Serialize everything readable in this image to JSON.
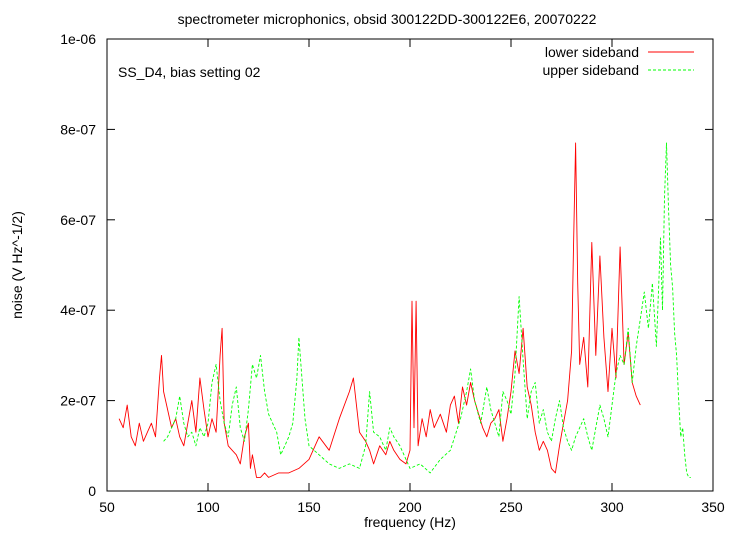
{
  "chart_data": {
    "type": "line",
    "title": "spectrometer microphonics, obsid 300122DD-300122E6, 20070222",
    "annotation": "SS_D4, bias setting 02",
    "xlabel": "frequency (Hz)",
    "ylabel": "noise (V Hz^-1/2)",
    "xlim": [
      50,
      350
    ],
    "ylim": [
      0,
      1e-06
    ],
    "x_ticks": [
      50,
      100,
      150,
      200,
      250,
      300,
      350
    ],
    "x_tick_labels": [
      "50",
      "100",
      "150",
      "200",
      "250",
      "300",
      "350"
    ],
    "y_ticks": [
      0,
      2e-07,
      4e-07,
      6e-07,
      8e-07,
      1e-06
    ],
    "y_tick_labels": [
      "0",
      "2e-07",
      "4e-07",
      "6e-07",
      "8e-07",
      "1e-06"
    ],
    "grid": false,
    "legend_position": "top-right",
    "series": [
      {
        "name": "lower sideband",
        "color": "#ff0000",
        "dash": "solid",
        "x": [
          56,
          58,
          60,
          62,
          64,
          66,
          68,
          70,
          72,
          74,
          76,
          77,
          78,
          80,
          82,
          84,
          86,
          88,
          90,
          92,
          94,
          96,
          98,
          100,
          102,
          104,
          106,
          107,
          108,
          110,
          112,
          114,
          116,
          118,
          120,
          121,
          122,
          124,
          126,
          128,
          130,
          135,
          140,
          145,
          150,
          155,
          160,
          165,
          170,
          172,
          175,
          178,
          180,
          182,
          185,
          188,
          190,
          192,
          195,
          198,
          200,
          201,
          202,
          203,
          204,
          206,
          208,
          210,
          212,
          215,
          218,
          220,
          222,
          224,
          226,
          228,
          230,
          232,
          234,
          236,
          238,
          240,
          242,
          244,
          246,
          248,
          250,
          252,
          254,
          256,
          258,
          260,
          262,
          264,
          266,
          268,
          270,
          272,
          274,
          276,
          278,
          280,
          281,
          282,
          283,
          284,
          286,
          288,
          290,
          292,
          294,
          296,
          298,
          300,
          302,
          304,
          306,
          308,
          310,
          312,
          314
        ],
        "y": [
          1.6e-07,
          1.4e-07,
          1.9e-07,
          1.2e-07,
          1e-07,
          1.5e-07,
          1.1e-07,
          1.3e-07,
          1.5e-07,
          1.2e-07,
          2.5e-07,
          3e-07,
          2.2e-07,
          1.8e-07,
          1.4e-07,
          1.6e-07,
          1.2e-07,
          1e-07,
          1.5e-07,
          2e-07,
          1.3e-07,
          2.5e-07,
          1.8e-07,
          1.2e-07,
          1.6e-07,
          1.3e-07,
          3e-07,
          3.6e-07,
          1.5e-07,
          1e-07,
          9e-08,
          8e-08,
          6e-08,
          1.2e-07,
          1.5e-07,
          5e-08,
          8e-08,
          3e-08,
          3e-08,
          4e-08,
          3e-08,
          4e-08,
          4e-08,
          5e-08,
          7e-08,
          1.2e-07,
          9e-08,
          1.6e-07,
          2.2e-07,
          2.5e-07,
          1.3e-07,
          1.1e-07,
          9e-08,
          6e-08,
          1e-07,
          8e-08,
          1.1e-07,
          9e-08,
          7e-08,
          6e-08,
          9e-08,
          4.2e-07,
          1.4e-07,
          4.2e-07,
          1e-07,
          1.6e-07,
          1.2e-07,
          1.8e-07,
          1.4e-07,
          1.7e-07,
          1.3e-07,
          1.9e-07,
          2.1e-07,
          1.5e-07,
          2.3e-07,
          1.9e-07,
          2.4e-07,
          2e-07,
          1.7e-07,
          1.4e-07,
          1.2e-07,
          1.5e-07,
          1.6e-07,
          1.8e-07,
          1.1e-07,
          1.6e-07,
          2.2e-07,
          3.1e-07,
          2.6e-07,
          3.6e-07,
          2.3e-07,
          1.9e-07,
          1.3e-07,
          9e-08,
          1.1e-07,
          9e-08,
          5e-08,
          4e-08,
          1e-07,
          1.5e-07,
          2e-07,
          3.1e-07,
          5.5e-07,
          7.7e-07,
          4.6e-07,
          2.8e-07,
          3.4e-07,
          2.3e-07,
          5.5e-07,
          3e-07,
          5.2e-07,
          3.4e-07,
          2.2e-07,
          3.6e-07,
          2.5e-07,
          5.4e-07,
          2.8e-07,
          3.5e-07,
          2.4e-07,
          2.1e-07,
          1.9e-07
        ]
      },
      {
        "name": "upper sideband",
        "color": "#00ff00",
        "dash": "dashed",
        "x": [
          78,
          80,
          82,
          84,
          86,
          88,
          90,
          92,
          94,
          96,
          98,
          100,
          102,
          104,
          106,
          108,
          110,
          112,
          114,
          116,
          118,
          120,
          122,
          124,
          126,
          128,
          130,
          132,
          134,
          136,
          138,
          140,
          142,
          144,
          145,
          146,
          148,
          150,
          155,
          160,
          165,
          170,
          175,
          178,
          180,
          182,
          185,
          188,
          190,
          192,
          195,
          198,
          200,
          205,
          210,
          215,
          220,
          225,
          228,
          230,
          232,
          235,
          238,
          240,
          242,
          244,
          246,
          248,
          250,
          252,
          254,
          256,
          258,
          260,
          262,
          264,
          266,
          268,
          270,
          272,
          274,
          276,
          278,
          280,
          282,
          284,
          286,
          288,
          290,
          292,
          294,
          296,
          298,
          300,
          302,
          304,
          306,
          308,
          310,
          312,
          314,
          316,
          318,
          320,
          322,
          324,
          325,
          326,
          327,
          328,
          329,
          330,
          331,
          332,
          333,
          334,
          335,
          336,
          337,
          338,
          339
        ],
        "y": [
          1.1e-07,
          1.2e-07,
          1.4e-07,
          1.6e-07,
          2.1e-07,
          1.5e-07,
          1.2e-07,
          1.3e-07,
          1e-07,
          1.4e-07,
          1.2e-07,
          1.5e-07,
          2.4e-07,
          2.8e-07,
          2e-07,
          1.5e-07,
          1.2e-07,
          1.9e-07,
          2.3e-07,
          1.4e-07,
          1.1e-07,
          1.8e-07,
          2.8e-07,
          2.5e-07,
          3e-07,
          2.2e-07,
          1.7e-07,
          1.5e-07,
          1.3e-07,
          8e-08,
          1e-07,
          1.2e-07,
          1.5e-07,
          2.5e-07,
          3.4e-07,
          2.8e-07,
          1.6e-07,
          1e-07,
          8e-08,
          6e-08,
          5e-08,
          6e-08,
          5e-08,
          1e-07,
          2.2e-07,
          1.3e-07,
          1.2e-07,
          9e-08,
          1.4e-07,
          1.2e-07,
          1e-07,
          7e-08,
          5e-08,
          6e-08,
          4e-08,
          7e-08,
          9e-08,
          1.6e-07,
          2.2e-07,
          2.7e-07,
          2e-07,
          1.5e-07,
          2.3e-07,
          1.8e-07,
          1.5e-07,
          1.2e-07,
          2.2e-07,
          2e-07,
          1.7e-07,
          2.6e-07,
          4.3e-07,
          2.9e-07,
          1.6e-07,
          2.2e-07,
          2.4e-07,
          1.5e-07,
          1.8e-07,
          1.3e-07,
          1.1e-07,
          1.6e-07,
          2e-07,
          1.4e-07,
          1.1e-07,
          9e-08,
          1.2e-07,
          1.4e-07,
          1.6e-07,
          1.2e-07,
          9e-08,
          1.4e-07,
          1.9e-07,
          1.6e-07,
          1.2e-07,
          1.9e-07,
          2.6e-07,
          3e-07,
          2.8e-07,
          3.6e-07,
          2.4e-07,
          3.2e-07,
          3.8e-07,
          4.4e-07,
          3.6e-07,
          4.6e-07,
          3.2e-07,
          5.6e-07,
          4e-07,
          6.5e-07,
          7.7e-07,
          6.2e-07,
          5e-07,
          4.5e-07,
          3.5e-07,
          3e-07,
          2e-07,
          1.2e-07,
          1.4e-07,
          8e-08,
          4e-08,
          3e-08,
          3e-08
        ]
      }
    ]
  }
}
